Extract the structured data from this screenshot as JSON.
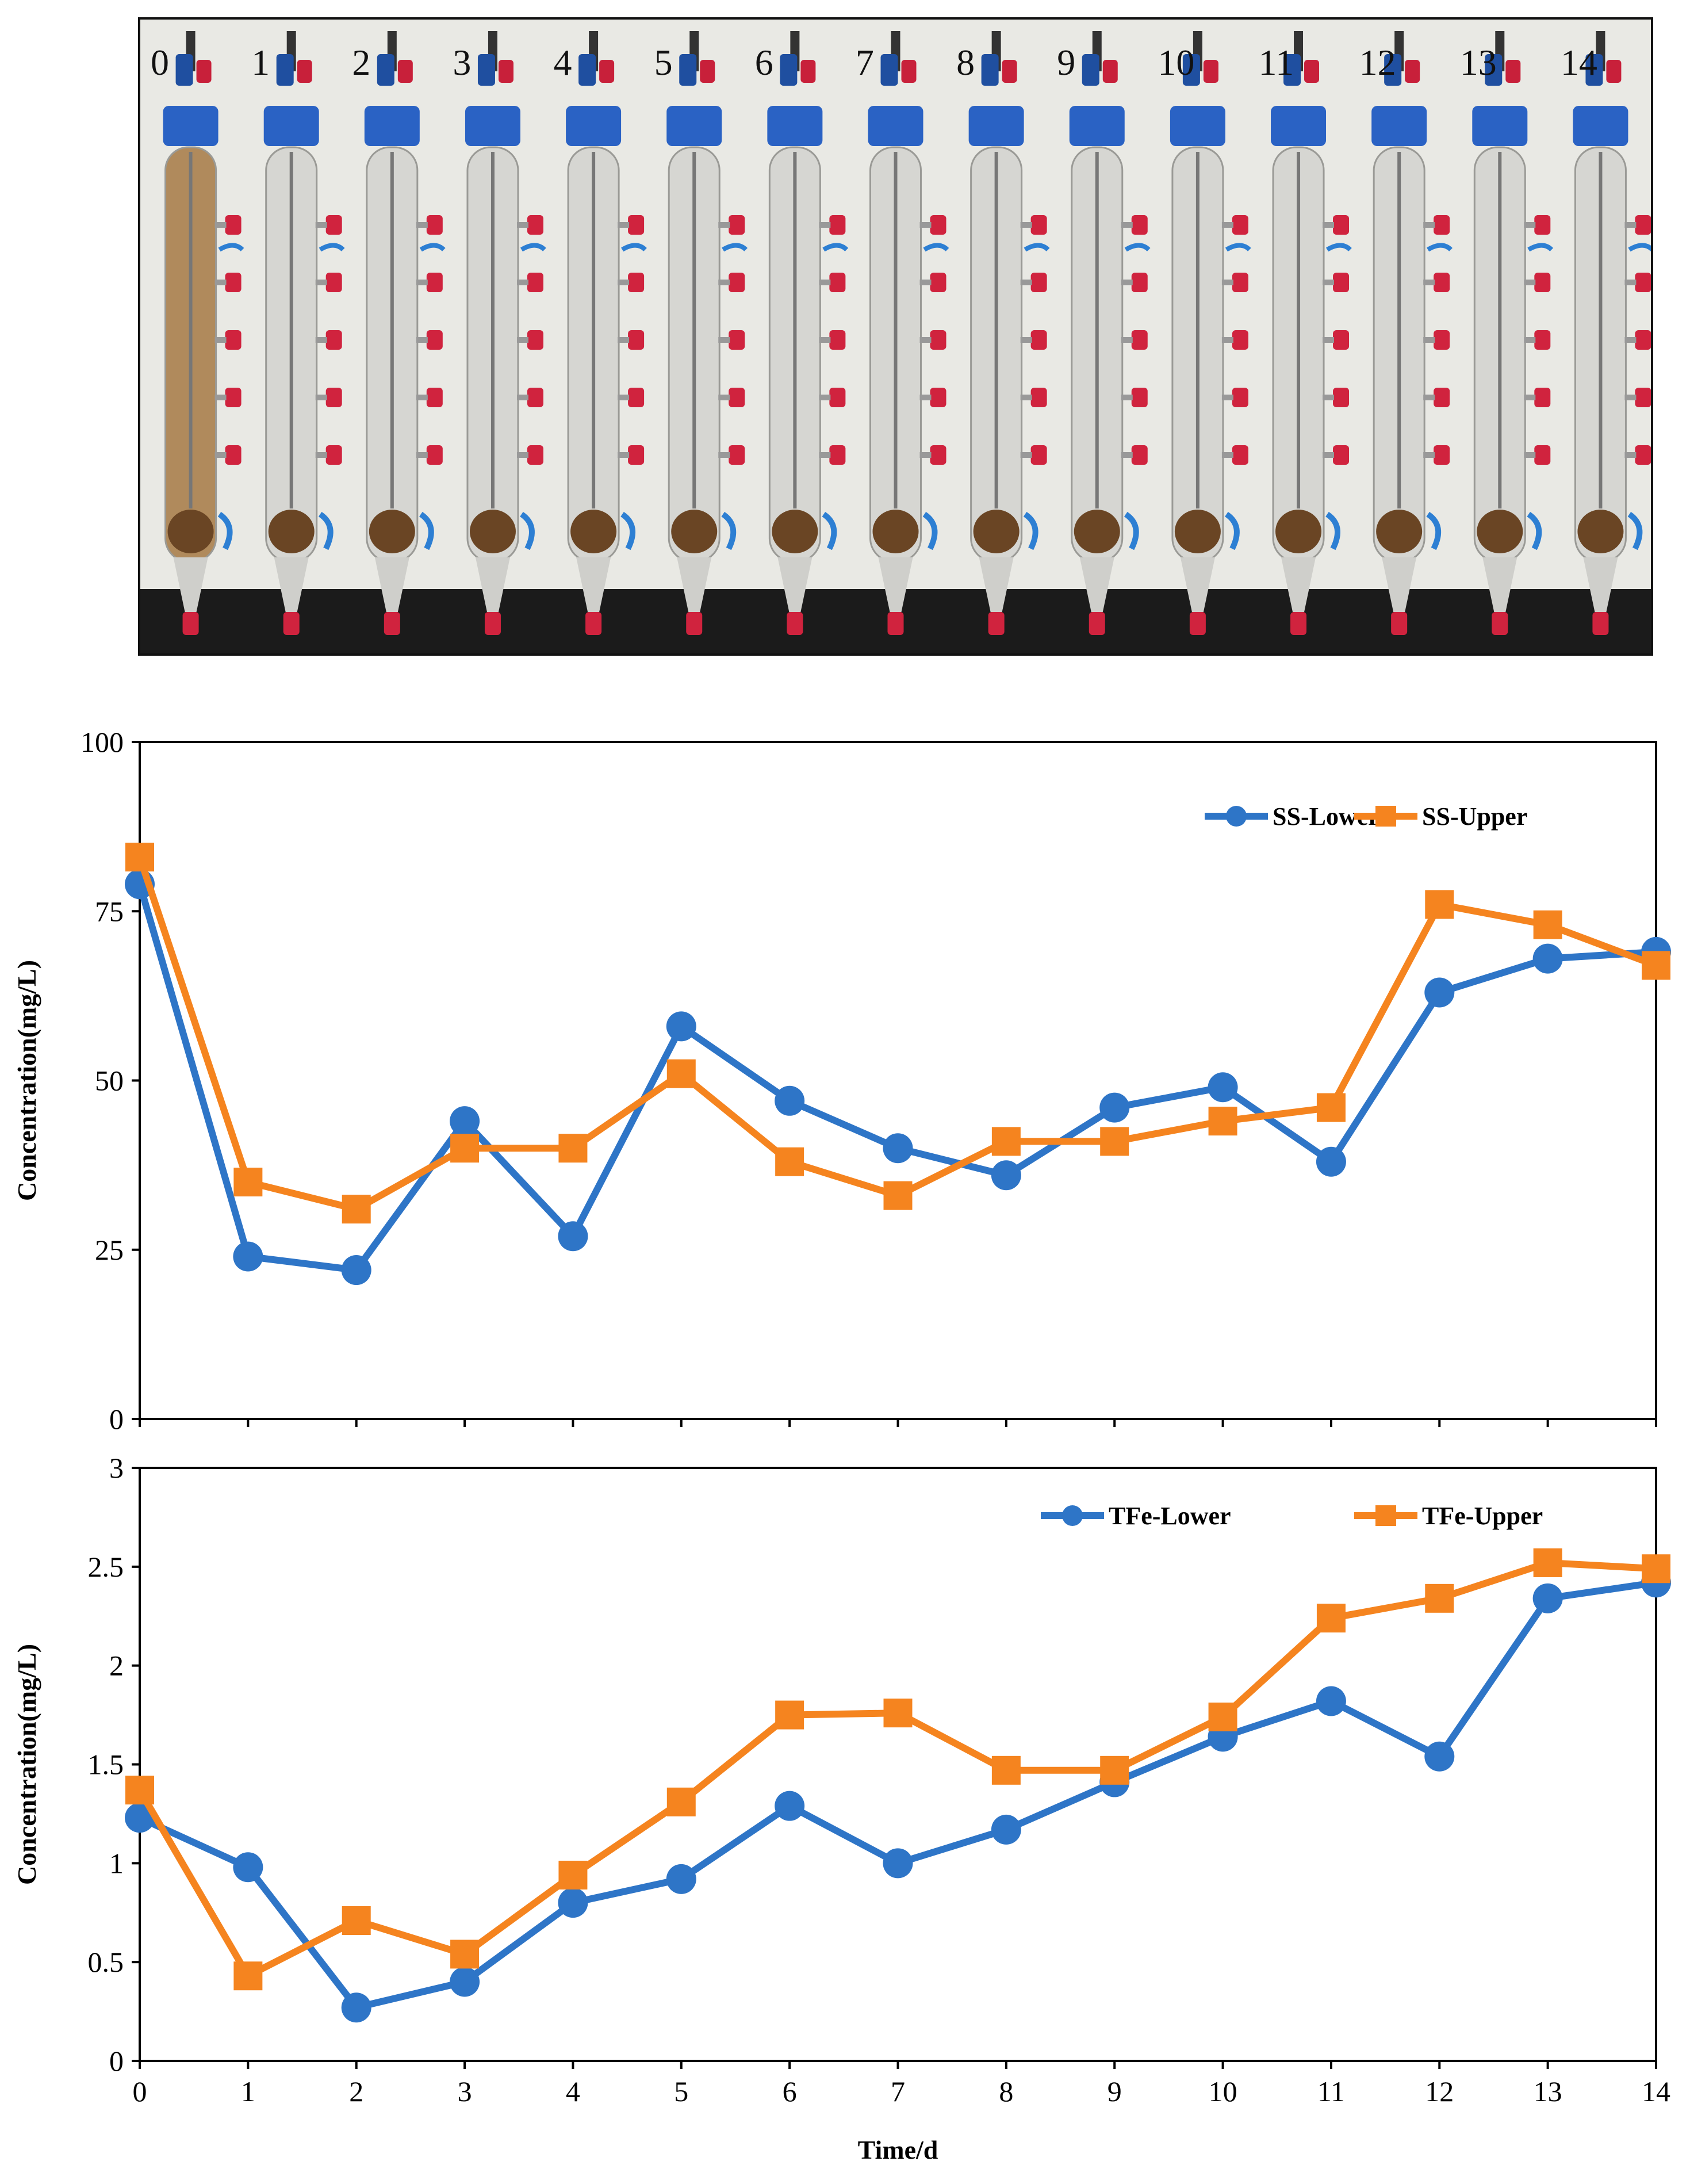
{
  "photo": {
    "column_labels": [
      "0",
      "1",
      "2",
      "3",
      "4",
      "5",
      "6",
      "7",
      "8",
      "9",
      "10",
      "11",
      "12",
      "13",
      "14"
    ]
  },
  "chart_data": [
    {
      "type": "line",
      "x": [
        0,
        1,
        2,
        3,
        4,
        5,
        6,
        7,
        8,
        9,
        10,
        11,
        12,
        13,
        14
      ],
      "xticks": [
        "0",
        "1",
        "2",
        "3",
        "4",
        "5",
        "6",
        "7",
        "8",
        "9",
        "10",
        "11",
        "12",
        "13",
        "14"
      ],
      "show_xtick_labels": false,
      "ylabel": "Concentration(mg/L)",
      "xlabel": "",
      "ylim": [
        0,
        100
      ],
      "yticks": [
        0,
        25,
        50,
        75,
        100
      ],
      "ytick_labels": [
        "0",
        "25",
        "50",
        "75",
        "100"
      ],
      "legend_position": "top-right",
      "series": [
        {
          "name": "SS-Lower",
          "color": "#2e75c7",
          "marker": "circle",
          "values": [
            79,
            24,
            22,
            44,
            27,
            58,
            47,
            40,
            36,
            46,
            49,
            38,
            63,
            68,
            69
          ]
        },
        {
          "name": "SS-Upper",
          "color": "#f5841f",
          "marker": "square",
          "values": [
            83,
            35,
            31,
            40,
            40,
            51,
            38,
            33,
            41,
            41,
            44,
            46,
            76,
            73,
            67
          ]
        }
      ]
    },
    {
      "type": "line",
      "x": [
        0,
        1,
        2,
        3,
        4,
        5,
        6,
        7,
        8,
        9,
        10,
        11,
        12,
        13,
        14
      ],
      "xticks": [
        "0",
        "1",
        "2",
        "3",
        "4",
        "5",
        "6",
        "7",
        "8",
        "9",
        "10",
        "11",
        "12",
        "13",
        "14"
      ],
      "show_xtick_labels": true,
      "ylabel": "Concentration(mg/L)",
      "xlabel": "Time/d",
      "ylim": [
        0,
        3
      ],
      "yticks": [
        0,
        0.5,
        1,
        1.5,
        2,
        2.5,
        3
      ],
      "ytick_labels": [
        "0",
        "0.5",
        "1",
        "1.5",
        "2",
        "2.5",
        "3"
      ],
      "legend_position": "top-right",
      "series": [
        {
          "name": "TFe-Lower",
          "color": "#2e75c7",
          "marker": "circle",
          "values": [
            1.23,
            0.98,
            0.27,
            0.4,
            0.8,
            0.92,
            1.29,
            1.0,
            1.17,
            1.41,
            1.64,
            1.82,
            1.54,
            2.34,
            2.42
          ]
        },
        {
          "name": "TFe-Upper",
          "color": "#f5841f",
          "marker": "square",
          "values": [
            1.37,
            0.43,
            0.71,
            0.54,
            0.94,
            1.31,
            1.75,
            1.76,
            1.47,
            1.47,
            1.74,
            2.24,
            2.34,
            2.52,
            2.49
          ]
        }
      ]
    }
  ]
}
